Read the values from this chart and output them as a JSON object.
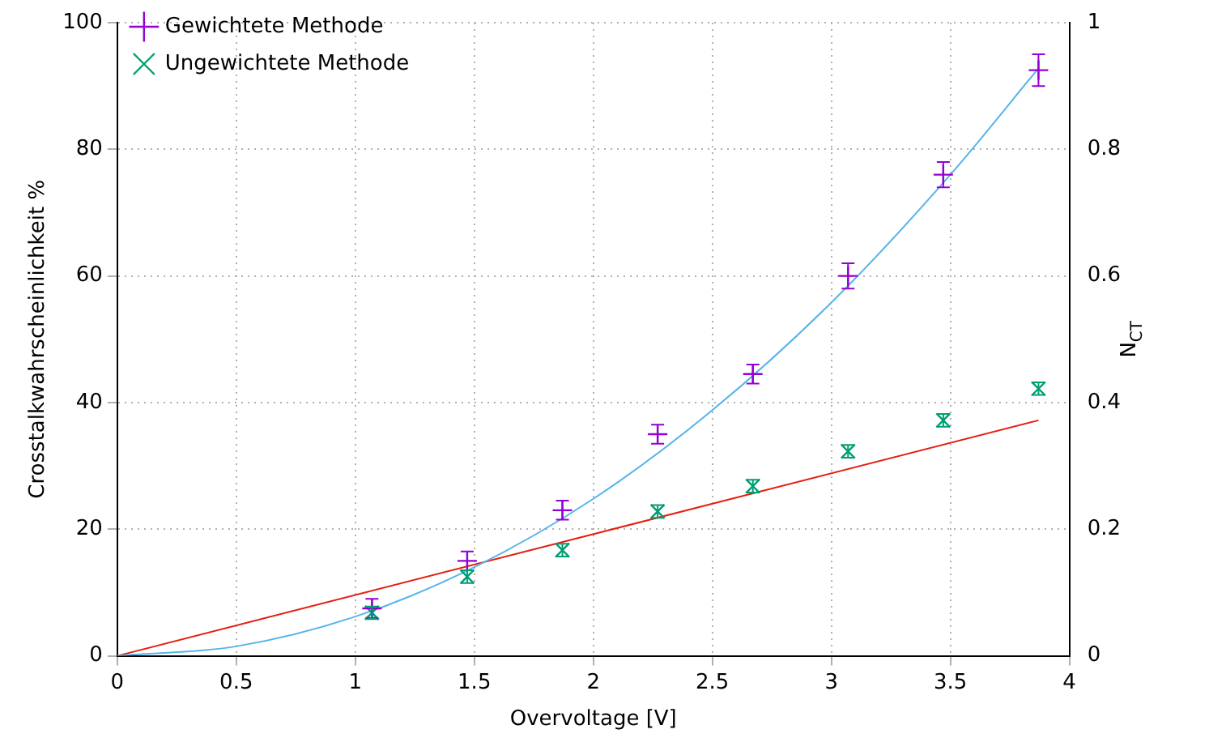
{
  "chart_data": {
    "type": "scatter",
    "xlabel": "Overvoltage [V]",
    "ylabel": "Crosstalkwahrscheinlichkeit %",
    "y2label": "N$_{CT}$",
    "xlim": [
      0,
      4
    ],
    "xticks": [
      0,
      0.5,
      1,
      1.5,
      2,
      2.5,
      3,
      3.5,
      4
    ],
    "ylim": [
      0,
      100
    ],
    "yticks": [
      0,
      20,
      40,
      60,
      80,
      100
    ],
    "y2lim": [
      0,
      1
    ],
    "y2ticks": [
      0,
      0.2,
      0.4,
      0.6,
      0.8,
      1
    ],
    "grid": true,
    "legend": "top left",
    "series": [
      {
        "name": "Gewichtete Methode",
        "marker": "cross",
        "color": "#9400d3",
        "x": [
          1.07,
          1.47,
          1.87,
          2.27,
          2.67,
          3.07,
          3.47,
          3.87
        ],
        "values": [
          7.5,
          15,
          23,
          35,
          44.5,
          60,
          76,
          92.5
        ],
        "errors": [
          1.5,
          1.5,
          1.5,
          1.5,
          1.5,
          2,
          2,
          2.5
        ]
      },
      {
        "name": "Ungewichtete Methode",
        "marker": "cross",
        "color": "#009e73",
        "x": [
          1.07,
          1.47,
          1.87,
          2.27,
          2.67,
          3.07,
          3.47,
          3.87
        ],
        "values": [
          6.8,
          12.5,
          16.7,
          22.8,
          26.8,
          32.3,
          37.2,
          42.2
        ],
        "errors": [
          1,
          1,
          1,
          1,
          1,
          1,
          1,
          1
        ]
      },
      {
        "type": "line",
        "color": "#56b4e9",
        "x": [
          0,
          0.5,
          1,
          1.5,
          2,
          2.5,
          3,
          3.5,
          3.87
        ],
        "values": [
          0,
          1.5,
          6.2,
          14,
          24.8,
          38.8,
          55.8,
          76,
          92.8
        ]
      },
      {
        "type": "line",
        "color": "#e51e10",
        "x": [
          0,
          3.87
        ],
        "values": [
          0,
          37.2
        ]
      }
    ]
  }
}
